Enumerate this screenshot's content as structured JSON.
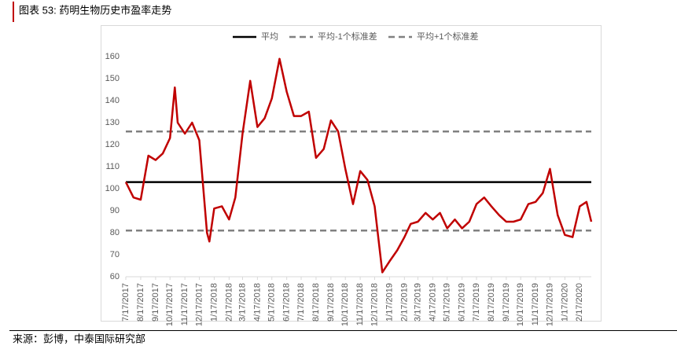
{
  "chart_data": {
    "type": "line",
    "title": "图表 53: 药明生物历史市盈率走势",
    "source": "来源：彭博，中泰国际研究部",
    "x": [
      "7/17/2017",
      "8/2/2017",
      "8/17/2017",
      "9/2/2017",
      "9/17/2017",
      "10/2/2017",
      "10/17/2017",
      "10/27/2017",
      "11/2/2017",
      "11/17/2017",
      "12/2/2017",
      "12/17/2017",
      "1/2/2018",
      "1/7/2018",
      "1/17/2018",
      "2/2/2018",
      "2/17/2018",
      "3/2/2018",
      "3/17/2018",
      "4/2/2018",
      "4/17/2018",
      "5/2/2018",
      "5/17/2018",
      "6/2/2018",
      "6/17/2018",
      "7/2/2018",
      "7/17/2018",
      "8/2/2018",
      "8/17/2018",
      "9/2/2018",
      "9/17/2018",
      "10/2/2018",
      "10/17/2018",
      "11/2/2018",
      "11/17/2018",
      "12/2/2018",
      "12/17/2018",
      "1/2/2019",
      "1/17/2019",
      "2/2/2019",
      "2/17/2019",
      "3/2/2019",
      "3/17/2019",
      "4/2/2019",
      "4/17/2019",
      "5/2/2019",
      "5/17/2019",
      "6/2/2019",
      "6/17/2019",
      "7/2/2019",
      "7/17/2019",
      "8/2/2019",
      "8/17/2019",
      "9/2/2019",
      "9/17/2019",
      "10/2/2019",
      "10/17/2019",
      "11/2/2019",
      "11/17/2019",
      "12/2/2019",
      "12/17/2019",
      "1/2/2020",
      "1/17/2020",
      "2/2/2020",
      "2/17/2020",
      "3/2/2020",
      "3/12/2020"
    ],
    "series": [
      {
        "color": "#c00000",
        "values": [
          103,
          96,
          95,
          115,
          113,
          116,
          123,
          146,
          130,
          125,
          130,
          122,
          80,
          76,
          91,
          92,
          86,
          96,
          125,
          149,
          128,
          132,
          141,
          159,
          144,
          133,
          133,
          135,
          114,
          118,
          131,
          126,
          109,
          93,
          108,
          104,
          92,
          62,
          67,
          72,
          78,
          84,
          85,
          89,
          86,
          89,
          82,
          86,
          82,
          85,
          93,
          96,
          92,
          88,
          85,
          85,
          86,
          93,
          94,
          98,
          109,
          88,
          79,
          78,
          92,
          94,
          85
        ]
      }
    ],
    "reference_lines": [
      {
        "name": "平均",
        "value": 103,
        "color": "#000000",
        "dashed": false
      },
      {
        "name": "平均-1个标准差",
        "value": 81,
        "color": "#808080",
        "dashed": true
      },
      {
        "name": "平均+1个标准差",
        "value": 126,
        "color": "#808080",
        "dashed": true
      }
    ],
    "xlim": [
      "7/17/2017",
      "3/12/2020"
    ],
    "xticks": [
      "7/17/2017",
      "8/17/2017",
      "9/17/2017",
      "10/17/2017",
      "11/17/2017",
      "12/17/2017",
      "1/17/2018",
      "2/17/2018",
      "3/17/2018",
      "4/17/2018",
      "5/17/2018",
      "6/17/2018",
      "7/17/2018",
      "8/17/2018",
      "9/17/2018",
      "10/17/2018",
      "11/17/2018",
      "12/17/2018",
      "1/17/2019",
      "2/17/2019",
      "3/17/2019",
      "4/17/2019",
      "5/17/2019",
      "6/17/2019",
      "7/17/2019",
      "8/17/2019",
      "9/17/2019",
      "10/17/2019",
      "11/17/2019",
      "12/17/2019",
      "1/17/2020",
      "2/17/2020"
    ],
    "ylim": [
      60,
      160
    ],
    "yticks": [
      60,
      70,
      80,
      90,
      100,
      110,
      120,
      130,
      140,
      150,
      160
    ]
  }
}
